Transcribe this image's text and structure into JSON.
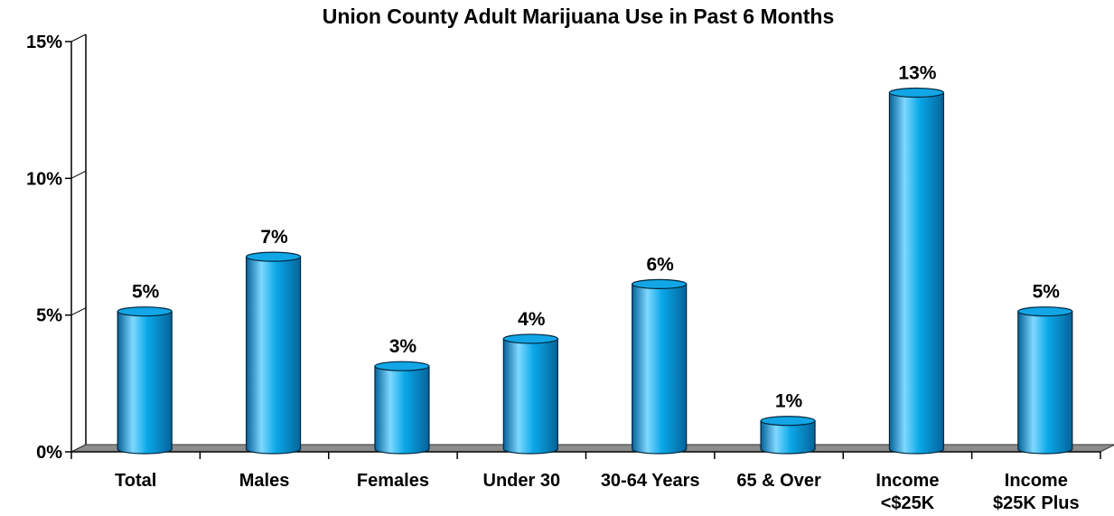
{
  "chart_data": {
    "type": "bar",
    "title": "Union County Adult Marijuana Use in Past 6 Months",
    "xlabel": "",
    "ylabel": "",
    "categories": [
      [
        "Total"
      ],
      [
        "Males"
      ],
      [
        "Females"
      ],
      [
        "Under 30"
      ],
      [
        "30-64 Years"
      ],
      [
        "65 & Over"
      ],
      [
        "Income",
        "<$25K"
      ],
      [
        "Income",
        "$25K Plus"
      ]
    ],
    "values": [
      5,
      7,
      3,
      4,
      6,
      1,
      13,
      5
    ],
    "data_labels": [
      "5%",
      "7%",
      "3%",
      "4%",
      "6%",
      "1%",
      "13%",
      "5%"
    ],
    "ylim": [
      0,
      15
    ],
    "y_ticks": [
      0,
      5,
      10,
      15
    ],
    "y_tick_labels": [
      "0%",
      "5%",
      "10%",
      "15%"
    ],
    "grid": false,
    "legend": "none",
    "bar_style": "3d-cylinder",
    "colors": {
      "bar_light": "#7fd8ff",
      "bar_main": "#0aa8e8",
      "bar_dark": "#05639a",
      "bar_top": "#12a6e6",
      "outline": "#00263d",
      "floor": "#8c8c8c"
    }
  }
}
